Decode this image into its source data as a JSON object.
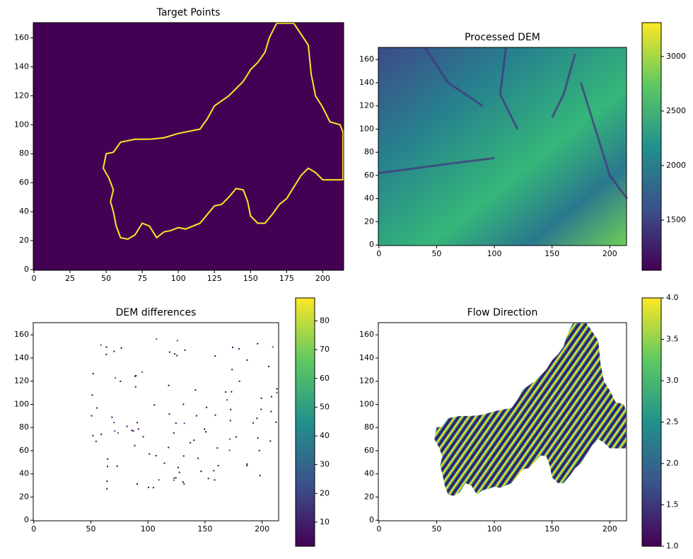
{
  "chart_data": [
    {
      "type": "image",
      "title": "Target Points",
      "cmap": "viridis",
      "xlim": [
        -0.5,
        214.5
      ],
      "ylim": [
        -0.5,
        170.5
      ],
      "xticks": [
        0,
        25,
        50,
        75,
        100,
        125,
        150,
        175,
        200
      ],
      "yticks": [
        0,
        20,
        40,
        60,
        80,
        100,
        120,
        140,
        160
      ]
    },
    {
      "type": "image",
      "title": "Processed DEM",
      "cmap": "viridis",
      "xlim": [
        -0.5,
        214.5
      ],
      "ylim": [
        -0.5,
        170.5
      ],
      "xticks": [
        0,
        50,
        100,
        150,
        200
      ],
      "yticks": [
        0,
        20,
        40,
        60,
        80,
        100,
        120,
        140,
        160
      ],
      "colorbar": {
        "clim": [
          1040,
          3310
        ],
        "ticks": [
          1500,
          2000,
          2500,
          3000
        ]
      }
    },
    {
      "type": "image",
      "title": "DEM differences",
      "cmap": "viridis",
      "xlim": [
        -0.5,
        214.5
      ],
      "ylim": [
        -0.5,
        170.5
      ],
      "xticks": [
        0,
        50,
        100,
        150,
        200
      ],
      "yticks": [
        0,
        20,
        40,
        60,
        80,
        100,
        120,
        140,
        160
      ],
      "colorbar": {
        "clim": [
          1.6,
          88
        ],
        "ticks": [
          10,
          20,
          30,
          40,
          50,
          60,
          70,
          80
        ]
      }
    },
    {
      "type": "image",
      "title": "Flow Direction",
      "cmap": "viridis",
      "xlim": [
        -0.5,
        214.5
      ],
      "ylim": [
        -0.5,
        170.5
      ],
      "xticks": [
        0,
        50,
        100,
        150,
        200
      ],
      "yticks": [
        0,
        20,
        40,
        60,
        80,
        100,
        120,
        140,
        160
      ],
      "colorbar": {
        "clim": [
          1,
          4
        ],
        "ticks": [
          {
            "value": 1,
            "label": "1.0"
          },
          {
            "value": 1.5,
            "label": "1.5"
          },
          {
            "value": 2,
            "label": "2.0"
          },
          {
            "value": 2.5,
            "label": "2.5"
          },
          {
            "value": 3,
            "label": "3.0"
          },
          {
            "value": 3.5,
            "label": "3.5"
          },
          {
            "value": 4,
            "label": "4.0"
          }
        ]
      }
    }
  ]
}
